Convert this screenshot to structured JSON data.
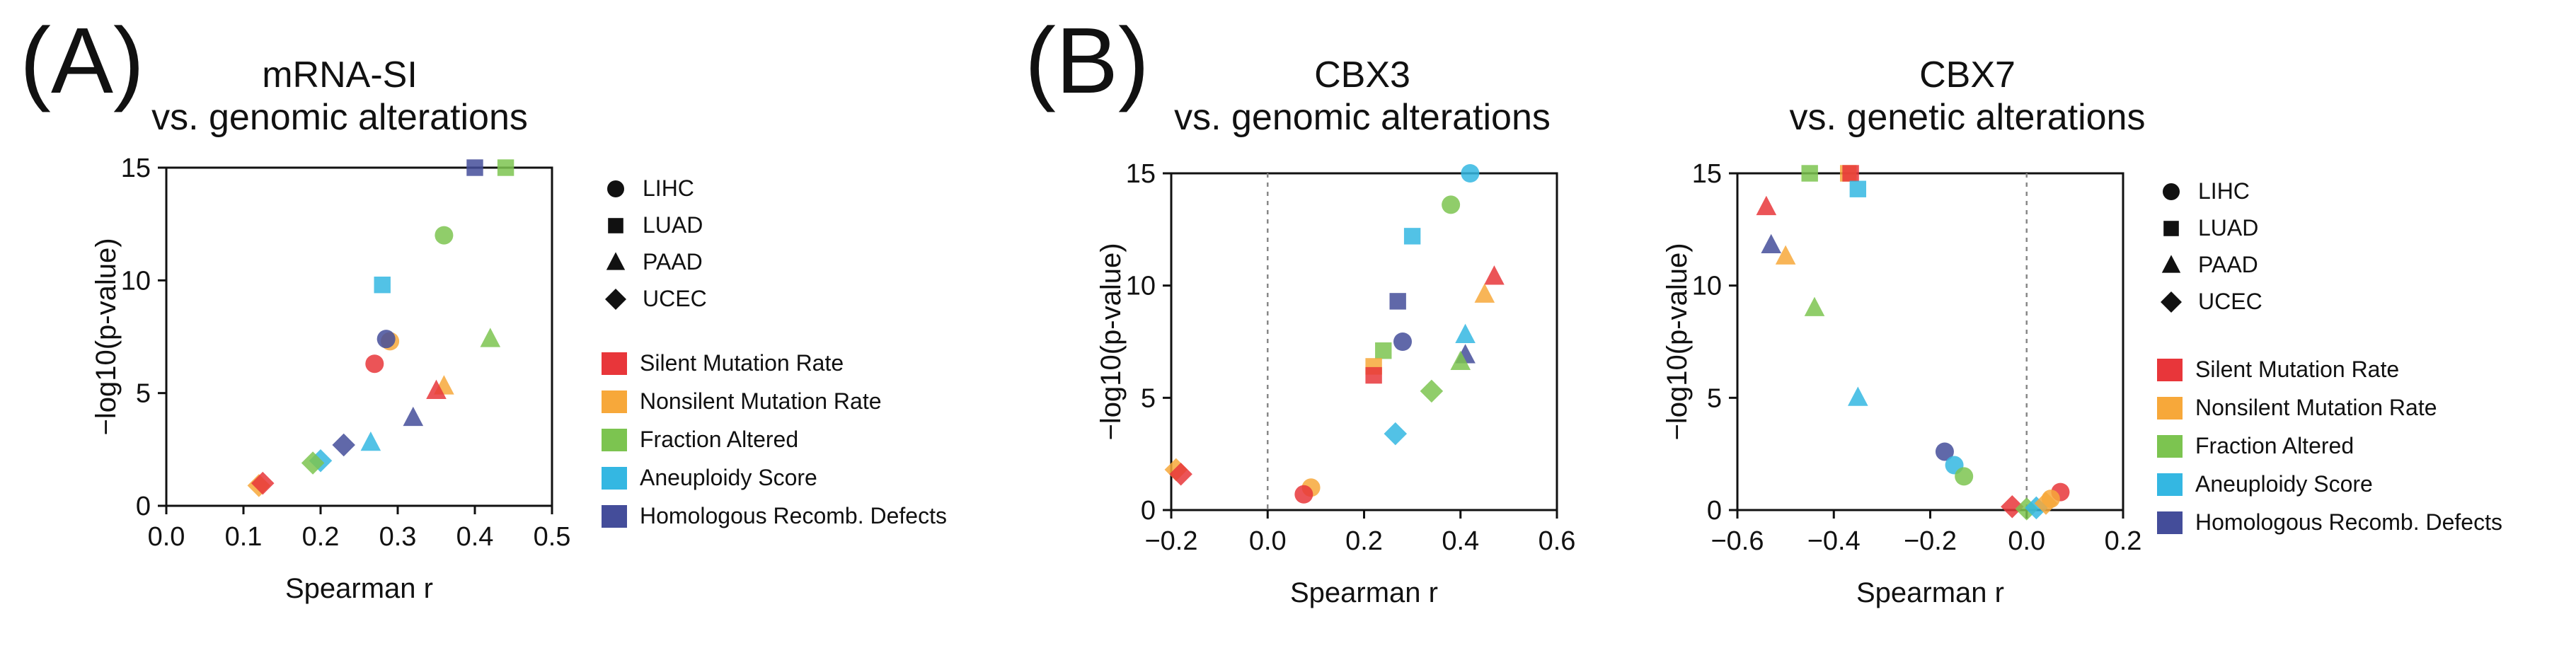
{
  "figure": {
    "panel_a": {
      "label": "(A)"
    },
    "panel_b": {
      "label": "(B)"
    }
  },
  "legend": {
    "shapes": [
      {
        "label": "LIHC",
        "icon": "circle"
      },
      {
        "label": "LUAD",
        "icon": "square"
      },
      {
        "label": "PAAD",
        "icon": "triangle"
      },
      {
        "label": "UCEC",
        "icon": "diamond"
      }
    ],
    "colors": [
      {
        "label": "Silent Mutation Rate",
        "color": "#e8363a"
      },
      {
        "label": "Nonsilent Mutation Rate",
        "color": "#f7a83a"
      },
      {
        "label": "Fraction Altered",
        "color": "#7cc450"
      },
      {
        "label": "Aneuploidy Score",
        "color": "#34b7e2"
      },
      {
        "label": "Homologous Recomb. Defects",
        "color": "#444d9a"
      }
    ]
  },
  "chart_data": [
    {
      "type": "scatter",
      "id": "mrna_si",
      "title_line1": "mRNA-SI",
      "title_line2": "vs. genomic alterations",
      "xlabel": "Spearman r",
      "ylabel": "−log10(p-value)",
      "xlim": [
        0.0,
        0.5
      ],
      "ylim": [
        0,
        15
      ],
      "xticks": [
        "0.0",
        "0.1",
        "0.2",
        "0.3",
        "0.4",
        "0.5"
      ],
      "yticks": [
        "0",
        "5",
        "10",
        "15"
      ],
      "zero_line": false,
      "points": [
        {
          "x": 0.4,
          "y": 15.0,
          "shape": "square",
          "color": "#444d9a"
        },
        {
          "x": 0.44,
          "y": 15.0,
          "shape": "square",
          "color": "#7cc450"
        },
        {
          "x": 0.36,
          "y": 12.0,
          "shape": "circle",
          "color": "#7cc450"
        },
        {
          "x": 0.28,
          "y": 9.8,
          "shape": "square",
          "color": "#34b7e2"
        },
        {
          "x": 0.29,
          "y": 7.3,
          "shape": "circle",
          "color": "#f7a83a"
        },
        {
          "x": 0.285,
          "y": 7.4,
          "shape": "circle",
          "color": "#444d9a"
        },
        {
          "x": 0.42,
          "y": 7.4,
          "shape": "triangle",
          "color": "#7cc450"
        },
        {
          "x": 0.27,
          "y": 6.3,
          "shape": "circle",
          "color": "#e8363a"
        },
        {
          "x": 0.36,
          "y": 5.3,
          "shape": "triangle",
          "color": "#f7a83a"
        },
        {
          "x": 0.35,
          "y": 5.1,
          "shape": "triangle",
          "color": "#e8363a"
        },
        {
          "x": 0.32,
          "y": 3.9,
          "shape": "triangle",
          "color": "#444d9a"
        },
        {
          "x": 0.265,
          "y": 2.8,
          "shape": "triangle",
          "color": "#34b7e2"
        },
        {
          "x": 0.23,
          "y": 2.7,
          "shape": "diamond",
          "color": "#444d9a"
        },
        {
          "x": 0.2,
          "y": 2.0,
          "shape": "diamond",
          "color": "#34b7e2"
        },
        {
          "x": 0.19,
          "y": 1.9,
          "shape": "diamond",
          "color": "#7cc450"
        },
        {
          "x": 0.12,
          "y": 0.9,
          "shape": "diamond",
          "color": "#f7a83a"
        },
        {
          "x": 0.125,
          "y": 1.0,
          "shape": "diamond",
          "color": "#e8363a"
        }
      ]
    },
    {
      "type": "scatter",
      "id": "cbx3",
      "title_line1": "CBX3",
      "title_line2": "vs. genomic alterations",
      "xlabel": "Spearman r",
      "ylabel": "−log10(p-value)",
      "xlim": [
        -0.2,
        0.6
      ],
      "ylim": [
        0,
        15
      ],
      "xticks": [
        "−0.2",
        "0.0",
        "0.2",
        "0.4",
        "0.6"
      ],
      "yticks": [
        "0",
        "5",
        "10",
        "15"
      ],
      "zero_line": true,
      "points": [
        {
          "x": 0.42,
          "y": 15.0,
          "shape": "circle",
          "color": "#34b7e2"
        },
        {
          "x": 0.38,
          "y": 13.6,
          "shape": "circle",
          "color": "#7cc450"
        },
        {
          "x": 0.3,
          "y": 12.2,
          "shape": "square",
          "color": "#34b7e2"
        },
        {
          "x": 0.47,
          "y": 10.4,
          "shape": "triangle",
          "color": "#e8363a"
        },
        {
          "x": 0.45,
          "y": 9.6,
          "shape": "triangle",
          "color": "#f7a83a"
        },
        {
          "x": 0.27,
          "y": 9.3,
          "shape": "square",
          "color": "#444d9a"
        },
        {
          "x": 0.41,
          "y": 7.8,
          "shape": "triangle",
          "color": "#34b7e2"
        },
        {
          "x": 0.28,
          "y": 7.5,
          "shape": "circle",
          "color": "#444d9a"
        },
        {
          "x": 0.24,
          "y": 7.1,
          "shape": "square",
          "color": "#7cc450"
        },
        {
          "x": 0.41,
          "y": 6.9,
          "shape": "triangle",
          "color": "#444d9a"
        },
        {
          "x": 0.4,
          "y": 6.6,
          "shape": "triangle",
          "color": "#7cc450"
        },
        {
          "x": 0.22,
          "y": 6.4,
          "shape": "square",
          "color": "#f7a83a"
        },
        {
          "x": 0.22,
          "y": 6.0,
          "shape": "square",
          "color": "#e8363a"
        },
        {
          "x": 0.34,
          "y": 5.3,
          "shape": "diamond",
          "color": "#7cc450"
        },
        {
          "x": 0.265,
          "y": 3.4,
          "shape": "diamond",
          "color": "#34b7e2"
        },
        {
          "x": -0.19,
          "y": 1.8,
          "shape": "diamond",
          "color": "#f7a83a"
        },
        {
          "x": -0.18,
          "y": 1.6,
          "shape": "diamond",
          "color": "#e8363a"
        },
        {
          "x": 0.09,
          "y": 1.0,
          "shape": "circle",
          "color": "#f7a83a"
        },
        {
          "x": 0.075,
          "y": 0.7,
          "shape": "circle",
          "color": "#e8363a"
        }
      ]
    },
    {
      "type": "scatter",
      "id": "cbx7",
      "title_line1": "CBX7",
      "title_line2": "vs. genetic alterations",
      "xlabel": "Spearman r",
      "ylabel": "−log10(p-value)",
      "xlim": [
        -0.6,
        0.2
      ],
      "ylim": [
        0,
        15
      ],
      "xticks": [
        "−0.6",
        "−0.4",
        "−0.2",
        "0.0",
        "0.2"
      ],
      "yticks": [
        "0",
        "5",
        "10",
        "15"
      ],
      "zero_line": true,
      "points": [
        {
          "x": -0.45,
          "y": 15.0,
          "shape": "square",
          "color": "#7cc450"
        },
        {
          "x": -0.37,
          "y": 15.0,
          "shape": "square",
          "color": "#f7a83a"
        },
        {
          "x": -0.365,
          "y": 15.0,
          "shape": "square",
          "color": "#e8363a"
        },
        {
          "x": -0.35,
          "y": 14.3,
          "shape": "square",
          "color": "#34b7e2"
        },
        {
          "x": -0.54,
          "y": 13.5,
          "shape": "triangle",
          "color": "#e8363a"
        },
        {
          "x": -0.53,
          "y": 11.8,
          "shape": "triangle",
          "color": "#444d9a"
        },
        {
          "x": -0.5,
          "y": 11.3,
          "shape": "triangle",
          "color": "#f7a83a"
        },
        {
          "x": -0.44,
          "y": 9.0,
          "shape": "triangle",
          "color": "#7cc450"
        },
        {
          "x": -0.35,
          "y": 5.0,
          "shape": "triangle",
          "color": "#34b7e2"
        },
        {
          "x": -0.17,
          "y": 2.6,
          "shape": "circle",
          "color": "#444d9a"
        },
        {
          "x": -0.15,
          "y": 2.0,
          "shape": "circle",
          "color": "#34b7e2"
        },
        {
          "x": -0.13,
          "y": 1.5,
          "shape": "circle",
          "color": "#7cc450"
        },
        {
          "x": 0.07,
          "y": 0.8,
          "shape": "circle",
          "color": "#e8363a"
        },
        {
          "x": 0.05,
          "y": 0.5,
          "shape": "circle",
          "color": "#f7a83a"
        },
        {
          "x": -0.03,
          "y": 0.15,
          "shape": "diamond",
          "color": "#e8363a"
        },
        {
          "x": 0.0,
          "y": 0.05,
          "shape": "diamond",
          "color": "#7cc450"
        },
        {
          "x": 0.02,
          "y": 0.1,
          "shape": "diamond",
          "color": "#34b7e2"
        },
        {
          "x": 0.04,
          "y": 0.3,
          "shape": "diamond",
          "color": "#f7a83a"
        }
      ]
    }
  ]
}
